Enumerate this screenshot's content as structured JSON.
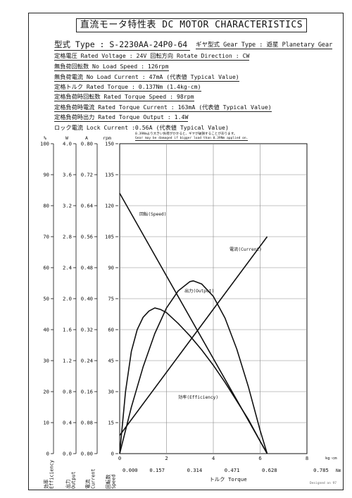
{
  "title": "直流モータ特性表 DC MOTOR CHARACTERISTICS",
  "model": "型式 Type : S-2230AA-24P0-64",
  "gear": "ギヤ型式 Gear Type : 遊星  Planetary Gear",
  "specs": {
    "rated_voltage": "定格電圧 Rated Voltage : 24V  回転方向 Rotate Direction : CW",
    "no_load_speed": "無負荷回転数 No Load Speed : 126rpm",
    "no_load_current": "無負荷電流 No Load Current : 47mA (代表値 Typical Value)",
    "rated_torque": "定格トルク Rated Torque : 0.137Nm (1.4kg·cm)",
    "rated_torque_speed": "定格負荷時回転数 Rated Torque Speed : 98rpm",
    "rated_torque_current": "定格負荷時電流 Rated Torque Current : 163mA (代表値 Typical Value)",
    "rated_torque_output": "定格負荷時出力 Rated Torque Output : 1.4W",
    "lock_current": "ロック電流 Lock Current :0.56A (代表値 Typical Value)"
  },
  "notes": {
    "jp": "0.39Nmより大きい負荷がかかると、ギヤが破損することがあります。",
    "en": "Gear may be damaged if bigger load than 0.39Nm applied on."
  },
  "designed": "Designed on 97",
  "colors": {
    "line": "#111111",
    "grid": "#888888"
  },
  "chart_data": {
    "type": "line",
    "xlabel": "トルク Torque",
    "x_unit_kgcm": "kg·cm",
    "x_unit_nm": "Nm",
    "kgcm_ticks": [
      "0",
      "2",
      "4",
      "6",
      "8"
    ],
    "nm_ticks": [
      "0.000",
      "0.157",
      "0.314",
      "0.471",
      "0.628",
      "0.785"
    ],
    "xlim_kgcm": [
      0,
      8
    ],
    "axes": [
      {
        "key": "eff",
        "unit": "%",
        "label_jp": "効率",
        "label_en": "Efficiency",
        "ticks": [
          "0",
          "10",
          "20",
          "30",
          "40",
          "50",
          "60",
          "70",
          "80",
          "90",
          "100"
        ]
      },
      {
        "key": "out",
        "unit": "W",
        "label_jp": "出力",
        "label_en": "Output",
        "ticks": [
          "0.0",
          "0.4",
          "0.8",
          "1.2",
          "1.6",
          "2.0",
          "2.4",
          "2.8",
          "3.2",
          "3.6",
          "4.0"
        ]
      },
      {
        "key": "cur",
        "unit": "A",
        "label_jp": "電流",
        "label_en": "Current",
        "ticks": [
          "0.00",
          "0.08",
          "0.16",
          "0.24",
          "0.32",
          "0.40",
          "0.48",
          "0.56",
          "0.64",
          "0.72",
          "0.80"
        ]
      },
      {
        "key": "spd",
        "unit": "rpm",
        "label_jp": "回転数",
        "label_en": "Speed",
        "ticks": [
          "0",
          "15",
          "30",
          "45",
          "60",
          "75",
          "90",
          "105",
          "120",
          "135",
          "150"
        ]
      }
    ],
    "series": [
      {
        "name": "回転(Speed)",
        "axis": "spd",
        "x": [
          0,
          6.3
        ],
        "y": [
          126,
          0
        ]
      },
      {
        "name": "電流(Current)",
        "axis": "cur",
        "x": [
          0,
          6.3
        ],
        "y": [
          0.047,
          0.56
        ]
      },
      {
        "name": "出力(Output)",
        "axis": "out",
        "x": [
          0,
          0.5,
          1.0,
          1.5,
          2.0,
          2.5,
          3.0,
          3.15,
          3.5,
          4.0,
          4.5,
          5.0,
          5.5,
          6.0,
          6.3
        ],
        "y": [
          0,
          0.6,
          1.12,
          1.55,
          1.88,
          2.1,
          2.22,
          2.23,
          2.19,
          2.03,
          1.75,
          1.35,
          0.86,
          0.3,
          0
        ]
      },
      {
        "name": "効率(Efficiency)",
        "axis": "eff",
        "x": [
          0,
          0.25,
          0.5,
          0.75,
          1.0,
          1.25,
          1.5,
          1.75,
          2.0,
          2.5,
          3.0,
          3.5,
          4.0,
          4.5,
          5.0,
          5.5,
          6.0,
          6.3
        ],
        "y": [
          0,
          20,
          33,
          40,
          44,
          46,
          47,
          46.5,
          45.5,
          42,
          38,
          33.5,
          28.5,
          23,
          17,
          11,
          4,
          0
        ]
      }
    ]
  }
}
